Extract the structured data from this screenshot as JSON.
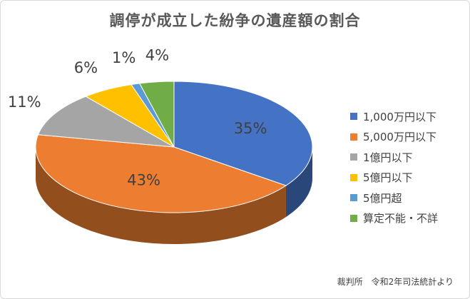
{
  "chart_data": {
    "type": "pie",
    "title": "調停が成立した紛争の遺産額の割合",
    "categories": [
      "1,000万円以下",
      "5,000万円以下",
      "1億円以下",
      "5億円以下",
      "5億円超",
      "算定不能・不詳"
    ],
    "values": [
      35,
      43,
      11,
      6,
      1,
      4
    ],
    "labels": [
      "35%",
      "43%",
      "11%",
      "6%",
      "1%",
      "4%"
    ],
    "colors": [
      "#4472C4",
      "#ED7D31",
      "#A5A5A5",
      "#FFC000",
      "#5B9BD5",
      "#70AD47"
    ],
    "legend_position": "right",
    "style": "3d"
  },
  "source_note": "裁判所　令和2年司法統計より"
}
